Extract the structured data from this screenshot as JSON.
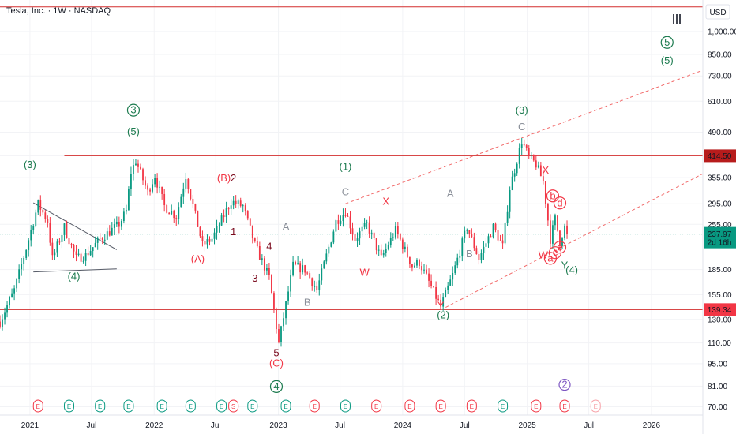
{
  "title": "Tesla, Inc. · 1W · NASDAQ",
  "currency": "USD",
  "toolbar_icon": "bars-icon",
  "colors": {
    "up": "#089981",
    "down": "#f23645",
    "wave_green": "#1b7a4e",
    "wave_red": "#f23645",
    "wave_gray": "#8a8f99",
    "wave_dark": "#7a0a1d",
    "hline": "#d32f2f",
    "trend_dash": "#f26b6b",
    "triangle": "#555a66",
    "price_badge": "#089981",
    "support_badge": "#f23645",
    "resist_badge": "#b71c1c"
  },
  "chart_data": {
    "type": "candlestick",
    "scale": "log",
    "ylim": [
      66,
      1250
    ],
    "y_ticks": [
      1000,
      850,
      730,
      610,
      490,
      414.5,
      355,
      295,
      255,
      237.97,
      185,
      155,
      139.34,
      130,
      110,
      95,
      81,
      70
    ],
    "y_tick_labels": [
      "1,000.00",
      "850.00",
      "730.00",
      "610.00",
      "490.00",
      "414.50",
      "355.00",
      "295.00",
      "255.00",
      "237.97",
      "185.00",
      "155.00",
      "139.34",
      "130.00",
      "110.00",
      "95.00",
      "81.00",
      "70.00"
    ],
    "x_range": [
      "2020-10-05",
      "2026-06-01"
    ],
    "x_ticks": [
      {
        "date": "2021-01-01",
        "label": "2021"
      },
      {
        "date": "2021-07-01",
        "label": "Jul"
      },
      {
        "date": "2022-01-01",
        "label": "2022"
      },
      {
        "date": "2022-07-01",
        "label": "Jul"
      },
      {
        "date": "2023-01-01",
        "label": "2023"
      },
      {
        "date": "2023-07-01",
        "label": "Jul"
      },
      {
        "date": "2024-01-01",
        "label": "2024"
      },
      {
        "date": "2024-07-01",
        "label": "Jul"
      },
      {
        "date": "2025-01-01",
        "label": "2025"
      },
      {
        "date": "2025-07-01",
        "label": "Jul"
      },
      {
        "date": "2026-01-01",
        "label": "2026"
      }
    ],
    "price_path": [
      [
        "2020-10-05",
        128
      ],
      [
        "2020-11-16",
        160
      ],
      [
        "2020-12-21",
        215
      ],
      [
        "2021-01-25",
        295
      ],
      [
        "2021-02-22",
        260
      ],
      [
        "2021-03-08",
        200
      ],
      [
        "2021-04-12",
        250
      ],
      [
        "2021-05-17",
        200
      ],
      [
        "2021-06-14",
        205
      ],
      [
        "2021-07-26",
        230
      ],
      [
        "2021-09-20",
        255
      ],
      [
        "2021-10-11",
        280
      ],
      [
        "2021-10-25",
        370
      ],
      [
        "2021-11-08",
        400
      ],
      [
        "2021-12-13",
        320
      ],
      [
        "2022-01-03",
        360
      ],
      [
        "2022-01-31",
        290
      ],
      [
        "2022-03-07",
        270
      ],
      [
        "2022-04-04",
        360
      ],
      [
        "2022-05-23",
        220
      ],
      [
        "2022-06-20",
        230
      ],
      [
        "2022-08-15",
        300
      ],
      [
        "2022-09-19",
        290
      ],
      [
        "2022-10-24",
        220
      ],
      [
        "2022-12-05",
        175
      ],
      [
        "2023-01-02",
        110
      ],
      [
        "2023-02-13",
        190
      ],
      [
        "2023-03-20",
        185
      ],
      [
        "2023-04-24",
        160
      ],
      [
        "2023-06-19",
        260
      ],
      [
        "2023-07-17",
        280
      ],
      [
        "2023-08-14",
        230
      ],
      [
        "2023-09-18",
        255
      ],
      [
        "2023-10-30",
        200
      ],
      [
        "2023-12-11",
        245
      ],
      [
        "2024-01-29",
        190
      ],
      [
        "2024-02-19",
        195
      ],
      [
        "2024-04-22",
        142
      ],
      [
        "2024-05-27",
        178
      ],
      [
        "2024-07-08",
        250
      ],
      [
        "2024-08-12",
        200
      ],
      [
        "2024-09-23",
        250
      ],
      [
        "2024-10-21",
        218
      ],
      [
        "2024-11-11",
        330
      ],
      [
        "2024-12-16",
        460
      ],
      [
        "2025-01-06",
        410
      ],
      [
        "2025-01-27",
        390
      ],
      [
        "2025-02-17",
        345
      ],
      [
        "2025-03-10",
        230
      ],
      [
        "2025-03-24",
        265
      ],
      [
        "2025-04-07",
        225
      ],
      [
        "2025-04-21",
        250
      ],
      [
        "2025-04-28",
        238
      ]
    ],
    "last_price": 237.97,
    "countdown": "2d 16h",
    "horizontal_lines": [
      {
        "price": 414.5,
        "label": "414.50",
        "from": "2021-04-12"
      },
      {
        "price": 139.34,
        "label": "139.34",
        "from": "2020-10-05"
      }
    ],
    "top_line": {
      "price": 1190
    },
    "trend_lines": [
      {
        "from": [
          "2023-07-17",
          295
        ],
        "to": [
          "2026-06-01",
          760
        ],
        "style": "dashed"
      },
      {
        "from": [
          "2024-04-22",
          139
        ],
        "to": [
          "2026-06-01",
          365
        ],
        "style": "dashed"
      },
      {
        "from": [
          "2021-01-11",
          297
        ],
        "to": [
          "2021-09-13",
          213
        ],
        "style": "solid"
      },
      {
        "from": [
          "2021-01-11",
          182
        ],
        "to": [
          "2021-09-13",
          186
        ],
        "style": "solid"
      }
    ],
    "wave_labels": [
      {
        "text": "3",
        "date": "2021-11-01",
        "price": 560,
        "color": "green",
        "circled": true
      },
      {
        "text": "(5)",
        "date": "2021-11-01",
        "price": 480,
        "color": "green"
      },
      {
        "text": "(3)",
        "date": "2021-01-01",
        "price": 380,
        "color": "green"
      },
      {
        "text": "(4)",
        "date": "2021-05-10",
        "price": 172,
        "color": "green"
      },
      {
        "text": "(B)",
        "date": "2022-07-25",
        "price": 345,
        "color": "red"
      },
      {
        "text": "2",
        "date": "2022-08-22",
        "price": 345,
        "color": "dark"
      },
      {
        "text": "1",
        "date": "2022-08-22",
        "price": 236,
        "color": "dark"
      },
      {
        "text": "(A)",
        "date": "2022-05-09",
        "price": 195,
        "color": "red"
      },
      {
        "text": "4",
        "date": "2022-12-05",
        "price": 213,
        "color": "dark"
      },
      {
        "text": "3",
        "date": "2022-10-24",
        "price": 170,
        "color": "dark"
      },
      {
        "text": "A",
        "date": "2023-01-23",
        "price": 245,
        "color": "gray"
      },
      {
        "text": "B",
        "date": "2023-03-27",
        "price": 143,
        "color": "gray"
      },
      {
        "text": "5",
        "date": "2022-12-26",
        "price": 100,
        "color": "dark"
      },
      {
        "text": "(C)",
        "date": "2022-12-26",
        "price": 93,
        "color": "red"
      },
      {
        "text": "4",
        "date": "2022-12-26",
        "price": 79,
        "color": "green",
        "circled": true
      },
      {
        "text": "(1)",
        "date": "2023-07-17",
        "price": 375,
        "color": "green"
      },
      {
        "text": "C",
        "date": "2023-07-17",
        "price": 313,
        "color": "gray"
      },
      {
        "text": "X",
        "date": "2023-11-13",
        "price": 293,
        "color": "red"
      },
      {
        "text": "W",
        "date": "2023-09-11",
        "price": 177,
        "color": "red"
      },
      {
        "text": "A",
        "date": "2024-05-20",
        "price": 310,
        "color": "gray"
      },
      {
        "text": "B",
        "date": "2024-07-15",
        "price": 202,
        "color": "gray"
      },
      {
        "text": "Y",
        "date": "2024-04-22",
        "price": 140,
        "color": "red"
      },
      {
        "text": "(2)",
        "date": "2024-04-29",
        "price": 131,
        "color": "green"
      },
      {
        "text": "(3)",
        "date": "2024-12-16",
        "price": 558,
        "color": "green"
      },
      {
        "text": "C",
        "date": "2024-12-16",
        "price": 497,
        "color": "gray"
      },
      {
        "text": "X",
        "date": "2025-02-24",
        "price": 365,
        "color": "red"
      },
      {
        "text": "b",
        "date": "2025-03-17",
        "price": 305,
        "color": "red",
        "circled": true
      },
      {
        "text": "d",
        "date": "2025-04-07",
        "price": 290,
        "color": "red",
        "circled": true
      },
      {
        "text": "W",
        "date": "2025-02-17",
        "price": 200,
        "color": "red"
      },
      {
        "text": "a",
        "date": "2025-03-10",
        "price": 196,
        "color": "red",
        "circled": true
      },
      {
        "text": "c",
        "date": "2025-03-24",
        "price": 204,
        "color": "red",
        "circled": true
      },
      {
        "text": "e",
        "date": "2025-04-07",
        "price": 212,
        "color": "red",
        "circled": true
      },
      {
        "text": "Y",
        "date": "2025-04-21",
        "price": 186,
        "color": "green"
      },
      {
        "text": "(4)",
        "date": "2025-05-12",
        "price": 180,
        "color": "green"
      },
      {
        "text": "5",
        "date": "2026-02-16",
        "price": 905,
        "color": "green",
        "circled": true
      },
      {
        "text": "(5)",
        "date": "2026-02-16",
        "price": 795,
        "color": "green"
      }
    ],
    "earnings_events": [
      {
        "date": "2021-01-25",
        "label": "E",
        "color": "red"
      },
      {
        "date": "2021-04-26",
        "label": "E",
        "color": "green"
      },
      {
        "date": "2021-07-26",
        "label": "E",
        "color": "green"
      },
      {
        "date": "2021-10-18",
        "label": "E",
        "color": "green"
      },
      {
        "date": "2022-01-24",
        "label": "E",
        "color": "green"
      },
      {
        "date": "2022-04-18",
        "label": "E",
        "color": "green"
      },
      {
        "date": "2022-07-18",
        "label": "E",
        "color": "green"
      },
      {
        "date": "2022-08-22",
        "label": "S",
        "color": "red"
      },
      {
        "date": "2022-10-17",
        "label": "E",
        "color": "green"
      },
      {
        "date": "2023-01-23",
        "label": "E",
        "color": "green"
      },
      {
        "date": "2023-04-17",
        "label": "E",
        "color": "red"
      },
      {
        "date": "2023-07-17",
        "label": "E",
        "color": "green"
      },
      {
        "date": "2023-10-16",
        "label": "E",
        "color": "red"
      },
      {
        "date": "2024-01-22",
        "label": "E",
        "color": "red"
      },
      {
        "date": "2024-04-22",
        "label": "E",
        "color": "red"
      },
      {
        "date": "2024-07-22",
        "label": "E",
        "color": "red"
      },
      {
        "date": "2024-10-21",
        "label": "E",
        "color": "green"
      },
      {
        "date": "2025-01-27",
        "label": "E",
        "color": "red"
      },
      {
        "date": "2025-04-21",
        "label": "E",
        "color": "red"
      },
      {
        "date": "2025-07-21",
        "label": "E",
        "color": "lightred"
      }
    ],
    "event_marker": {
      "date": "2025-04-21",
      "price": 80,
      "text": "2"
    }
  }
}
